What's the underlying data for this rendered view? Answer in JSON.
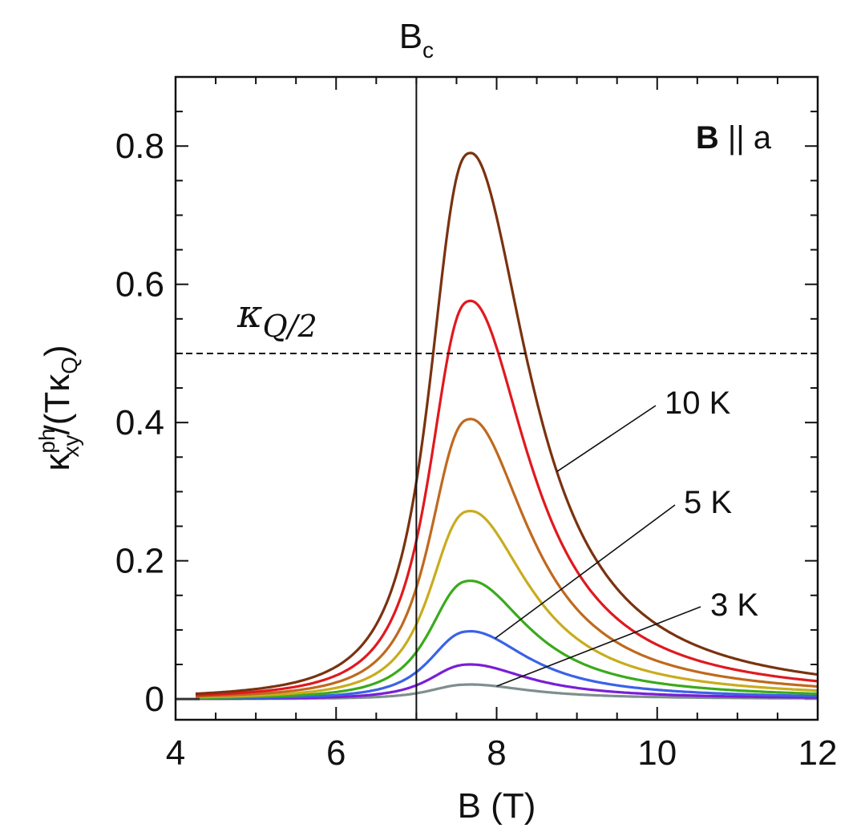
{
  "chart_data": {
    "type": "line",
    "xlabel": "B (T)",
    "ylabel": "κxy^ph/(TκQ)",
    "ylabel_parts": {
      "main": "κ",
      "sup": "ph",
      "sub": "xy",
      "rest": "/(Tκ",
      "sub2": "Q",
      "close": ")"
    },
    "xlim": [
      4,
      12
    ],
    "ylim": [
      -0.03,
      0.9
    ],
    "x_ticks": [
      4,
      6,
      8,
      10,
      12
    ],
    "x_tick_labels": [
      "4",
      "6",
      "8",
      "10",
      "12"
    ],
    "y_ticks": [
      0,
      0.2,
      0.4,
      0.6,
      0.8
    ],
    "y_tick_labels": [
      "0",
      "0.2",
      "0.4",
      "0.6",
      "0.8"
    ],
    "vline": {
      "x": 7.0,
      "label": "B",
      "label_sub": "c"
    },
    "hline": {
      "y": 0.5,
      "label": "κ",
      "label_sub": "Q/2"
    },
    "field_label": {
      "bold": "B",
      "rest": " || a"
    },
    "peak_x": 7.68,
    "series": [
      {
        "name": "10 K",
        "peak": 0.79,
        "color": "#7a3210"
      },
      {
        "name": "",
        "peak": 0.576,
        "color": "#e0191e"
      },
      {
        "name": "",
        "peak": 0.405,
        "color": "#c0691e"
      },
      {
        "name": "",
        "peak": 0.272,
        "color": "#c8ac1e"
      },
      {
        "name": "",
        "peak": 0.171,
        "color": "#3aaa1c"
      },
      {
        "name": "5 K",
        "peak": 0.098,
        "color": "#3a62e8"
      },
      {
        "name": "",
        "peak": 0.05,
        "color": "#7a1ed8"
      },
      {
        "name": "3 K",
        "peak": 0.021,
        "color": "#7f8e8e"
      }
    ],
    "annotations": [
      {
        "text": "10 K",
        "target_series": 0,
        "target_x": 8.75
      },
      {
        "text": "5 K",
        "target_series": 5,
        "target_x": 7.98
      },
      {
        "text": "3 K",
        "target_series": 7,
        "target_x": 8.0
      }
    ]
  }
}
